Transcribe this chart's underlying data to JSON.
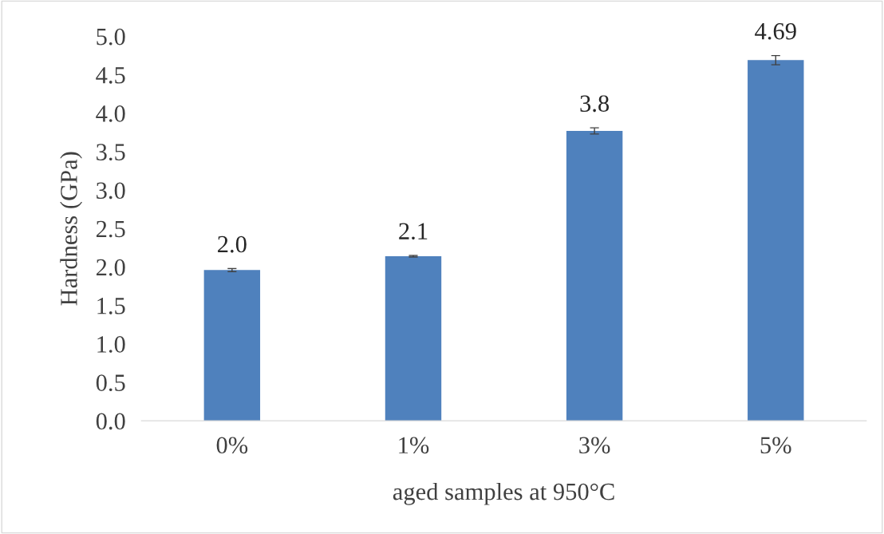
{
  "chart_data": {
    "type": "bar",
    "xlabel": "aged samples at 950°C",
    "ylabel": "Hardness (GPa)",
    "categories": [
      "0%",
      "1%",
      "3%",
      "5%"
    ],
    "values": [
      1.96,
      2.14,
      3.77,
      4.69
    ],
    "errors": [
      0.02,
      0.01,
      0.04,
      0.06
    ],
    "value_labels": [
      "2.0",
      "2.1",
      "3.8",
      "4.69"
    ],
    "color": "#4f81bd",
    "ylim": [
      0,
      5
    ],
    "yticks": [
      {
        "value": 0,
        "label": "0.0"
      },
      {
        "value": 0.5,
        "label": "0.5"
      },
      {
        "value": 1,
        "label": "1.0"
      },
      {
        "value": 1.5,
        "label": "1.5"
      },
      {
        "value": 2,
        "label": "2.0"
      },
      {
        "value": 2.5,
        "label": "2.5"
      },
      {
        "value": 3,
        "label": "3.0"
      },
      {
        "value": 3.5,
        "label": "3.5"
      },
      {
        "value": 4,
        "label": "4.0"
      },
      {
        "value": 4.5,
        "label": "4.5"
      },
      {
        "value": 5,
        "label": "5.0"
      }
    ],
    "grid": false
  }
}
